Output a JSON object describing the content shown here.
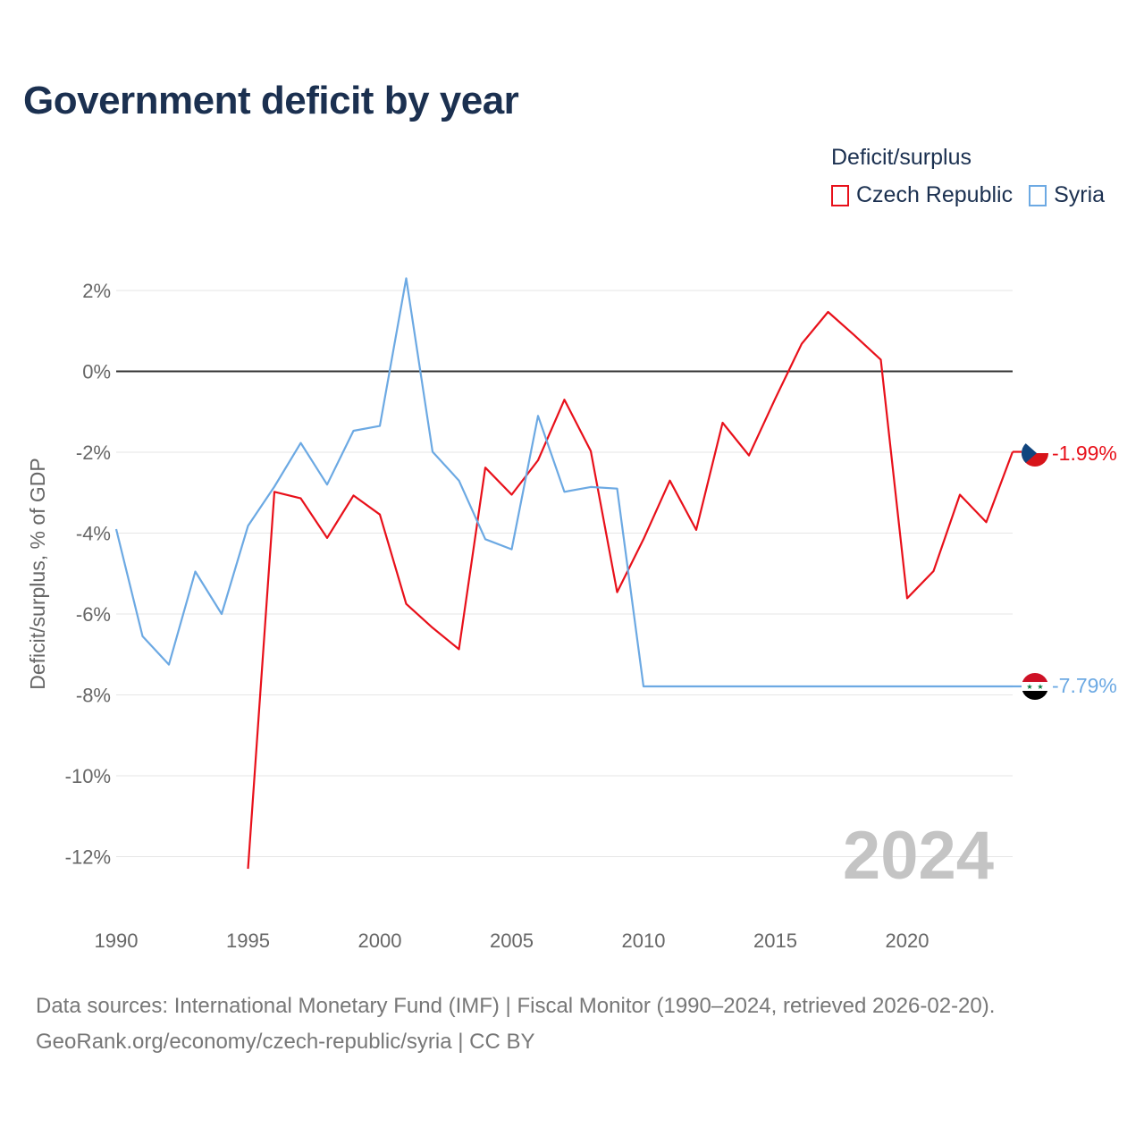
{
  "header": {
    "title": "Government deficit by year"
  },
  "legend": {
    "title": "Deficit/surplus"
  },
  "footer": {
    "source_line": "Data sources: International Monetary Fund (IMF) | Fiscal Monitor (1990–2024, retrieved 2026-02-20).",
    "credit_line": "GeoRank.org/economy/czech-republic/syria | CC BY"
  },
  "chart_data": {
    "type": "line",
    "title": "Government deficit by year",
    "xlabel": "",
    "ylabel": "Deficit/surplus, % of GDP",
    "xlim": [
      1990,
      2024
    ],
    "ylim": [
      -13,
      2.5
    ],
    "xticks": [
      1990,
      1995,
      2000,
      2005,
      2010,
      2015,
      2020
    ],
    "xtick_labels": [
      "1990",
      "1995",
      "2000",
      "2005",
      "2010",
      "2015",
      "2020"
    ],
    "yticks": [
      2,
      0,
      -2,
      -4,
      -6,
      -8,
      -10,
      -12
    ],
    "ytick_labels": [
      "2%",
      "0%",
      "-2%",
      "-4%",
      "-6%",
      "-8%",
      "-10%",
      "-12%"
    ],
    "zero_line": 0,
    "grid": true,
    "legend_position": "top-right",
    "year_label": "2024",
    "series": [
      {
        "name": "Czech Republic",
        "color": "#e8101a",
        "end_label": "-1.99%",
        "flag_icon": "czech-flag-icon",
        "x": [
          1995,
          1996,
          1997,
          1998,
          1999,
          2000,
          2001,
          2002,
          2003,
          2004,
          2005,
          2006,
          2007,
          2008,
          2009,
          2010,
          2011,
          2012,
          2013,
          2014,
          2015,
          2016,
          2017,
          2018,
          2019,
          2020,
          2021,
          2022,
          2023,
          2024
        ],
        "values": [
          -12.3,
          -2.98,
          -3.14,
          -4.12,
          -3.07,
          -3.54,
          -5.75,
          -6.34,
          -6.87,
          -2.38,
          -3.05,
          -2.2,
          -0.7,
          -1.97,
          -5.46,
          -4.15,
          -2.7,
          -3.92,
          -1.27,
          -2.08,
          -0.67,
          0.68,
          1.47,
          0.89,
          0.29,
          -5.61,
          -4.94,
          -3.05,
          -3.73,
          -1.99
        ]
      },
      {
        "name": "Syria",
        "color": "#6ca9e3",
        "end_label": "-7.79%",
        "flag_icon": "syria-flag-icon",
        "x": [
          1990,
          1991,
          1992,
          1993,
          1994,
          1995,
          1996,
          1997,
          1998,
          1999,
          2000,
          2001,
          2002,
          2003,
          2004,
          2005,
          2006,
          2007,
          2008,
          2009,
          2010,
          2011,
          2012,
          2013,
          2014,
          2015,
          2016,
          2017,
          2018,
          2019,
          2020,
          2021,
          2022,
          2023,
          2024
        ],
        "values": [
          -3.9,
          -6.55,
          -7.25,
          -4.95,
          -6.0,
          -3.82,
          -2.85,
          -1.77,
          -2.8,
          -1.47,
          -1.35,
          2.3,
          -1.99,
          -2.7,
          -4.15,
          -4.4,
          -1.1,
          -2.98,
          -2.86,
          -2.9,
          -7.79,
          -7.79,
          -7.79,
          -7.79,
          -7.79,
          -7.79,
          -7.79,
          -7.79,
          -7.79,
          -7.79,
          -7.79,
          -7.79,
          -7.79,
          -7.79,
          -7.79
        ]
      }
    ]
  }
}
